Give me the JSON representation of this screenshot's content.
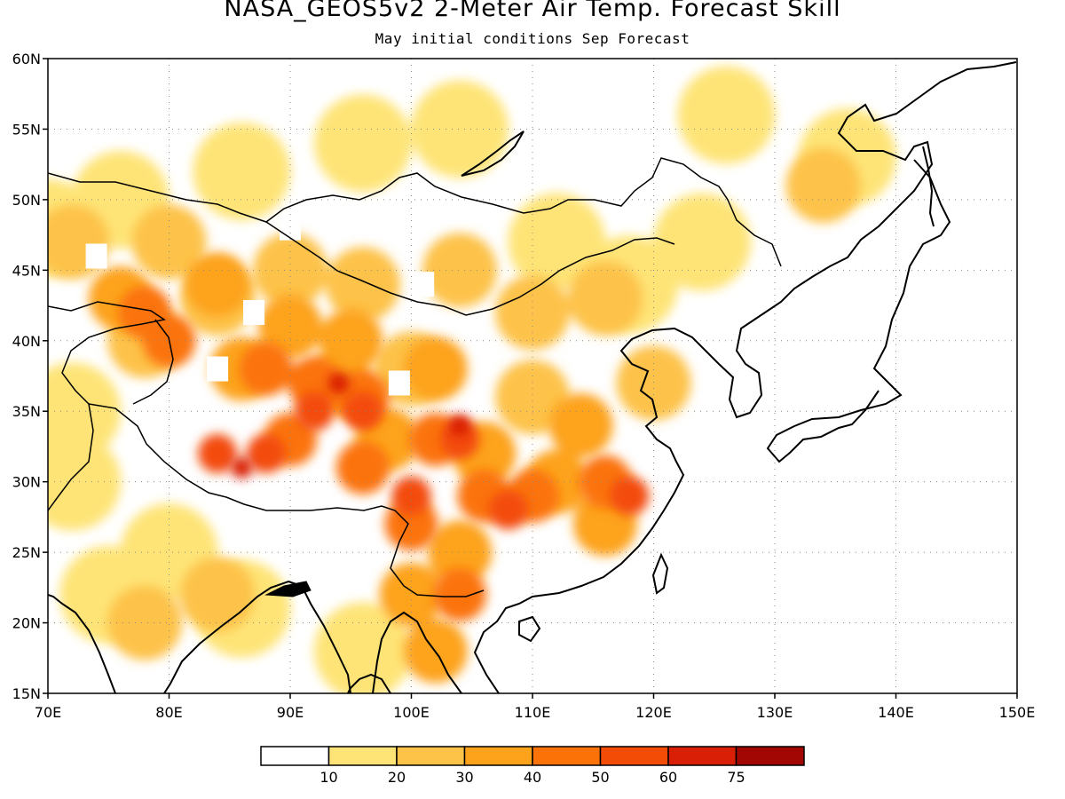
{
  "title": "NASA_GEOS5v2 2-Meter Air Temp. Forecast Skill",
  "subtitle": "May initial conditions  Sep Forecast",
  "map": {
    "lon_range": [
      70,
      150
    ],
    "lat_range": [
      15,
      60
    ],
    "lon_ticks": [
      "70E",
      "80E",
      "90E",
      "100E",
      "110E",
      "120E",
      "130E",
      "140E",
      "150E"
    ],
    "lat_ticks": [
      "15N",
      "20N",
      "25N",
      "30N",
      "35N",
      "40N",
      "45N",
      "50N",
      "55N",
      "60N"
    ],
    "gridlines": "dotted",
    "levels": [
      {
        "min": 10,
        "max": 20,
        "color": "#fee477"
      },
      {
        "min": 20,
        "max": 30,
        "color": "#fdc248"
      },
      {
        "min": 30,
        "max": 40,
        "color": "#fda31b"
      },
      {
        "min": 40,
        "max": 50,
        "color": "#fb7308"
      },
      {
        "min": 50,
        "max": 60,
        "color": "#f34c07"
      },
      {
        "min": 60,
        "max": 75,
        "color": "#d91f05"
      }
    ]
  },
  "colorbar": {
    "colors": [
      "#ffffff",
      "#fee477",
      "#fdc248",
      "#fda31b",
      "#fb7308",
      "#f34c07",
      "#d91f05",
      "#a20704"
    ],
    "labels": [
      "10",
      "20",
      "30",
      "40",
      "50",
      "60",
      "75"
    ]
  }
}
